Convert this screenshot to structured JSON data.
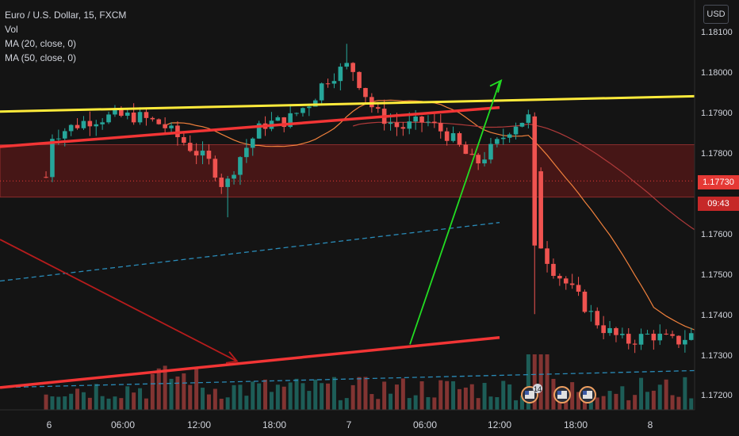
{
  "legend": {
    "symbol": "Euro / U.S. Dollar, 15, FXCM",
    "vol": "Vol",
    "ma20": "MA (20, close, 0)",
    "ma50": "MA (50, close, 0)"
  },
  "currency": "USD",
  "last_price": {
    "value": "1.17730",
    "countdown": "09:43"
  },
  "colors": {
    "background": "#141414",
    "up": "#26a69a",
    "down": "#ef5350",
    "ma20": "#f0803c",
    "ma50": "#b03a3a",
    "trendline_red": "#f23535",
    "trendline_yellow": "#ffeb3b",
    "arrow_green": "#22dd22",
    "dashed_blue": "#2a8bb8"
  },
  "chart_data": {
    "type": "candlestick",
    "y_ticks": [
      "1.18100",
      "1.18000",
      "1.17900",
      "1.17800",
      "1.17600",
      "1.17500",
      "1.17400",
      "1.17300",
      "1.17200"
    ],
    "x_ticks": [
      "6",
      "06:00",
      "12:00",
      "18:00",
      "7",
      "06:00",
      "12:00",
      "18:00",
      "8"
    ],
    "ylim": [
      1.1717,
      1.1816
    ],
    "zones": [
      {
        "from": 1.1769,
        "to": 1.1782
      }
    ],
    "lines": [
      {
        "name": "yellow-trendline",
        "from": [
          "start",
          1.17902
        ],
        "to": [
          "end",
          1.1794
        ]
      },
      {
        "name": "upper-red-trendline",
        "from": [
          "start",
          1.17815
        ],
        "to": [
          "12:00 (7)",
          1.17912
        ]
      },
      {
        "name": "lower-red-trendline",
        "from": [
          "start",
          1.17218
        ],
        "to": [
          "12:00 (7)",
          1.17342
        ]
      },
      {
        "name": "blue-dashed-channel-upper",
        "from": [
          "start",
          1.17482
        ],
        "to": [
          "12:00 (7)",
          1.17627
        ]
      },
      {
        "name": "blue-dashed-channel-lower",
        "from": [
          "start",
          1.17218
        ],
        "to": [
          "end",
          1.1726
        ]
      }
    ],
    "arrows": [
      {
        "name": "dark-red-arrow",
        "from": [
          "start",
          1.17585
        ],
        "to": [
          "15:00 (6)",
          1.17283
        ]
      },
      {
        "name": "green-projection-arrow",
        "from": [
          "05:00 (7)",
          1.17325
        ],
        "to": [
          "12:00 (7)",
          1.17975
        ]
      }
    ]
  }
}
